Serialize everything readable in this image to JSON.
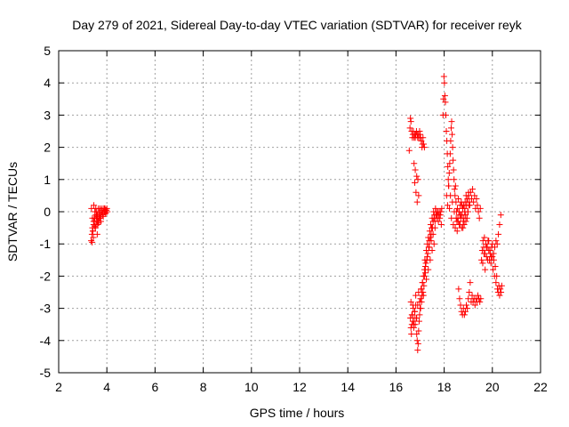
{
  "chart_data": {
    "type": "scatter",
    "title": "Day 279 of 2021, Sidereal Day-to-day VTEC variation (SDTVAR) for receiver reyk",
    "xlabel": "GPS time / hours",
    "ylabel": "SDTVAR / TECUs",
    "xlim": [
      2,
      22
    ],
    "ylim": [
      -5,
      5
    ],
    "xticks": [
      "2",
      "4",
      "6",
      "8",
      "10",
      "12",
      "14",
      "16",
      "18",
      "20",
      "22"
    ],
    "yticks": [
      "5",
      "4",
      "3",
      "2",
      "1",
      "0",
      "-1",
      "-2",
      "-3",
      "-4",
      "-5"
    ],
    "grid": true,
    "marker": "+",
    "series_color": "#ff0000",
    "series": [
      {
        "name": "reyk",
        "x": [
          3.35,
          3.38,
          3.4,
          3.42,
          3.45,
          3.48,
          3.5,
          3.52,
          3.55,
          3.58,
          3.6,
          3.62,
          3.65,
          3.68,
          3.7,
          3.72,
          3.75,
          3.78,
          3.8,
          3.82,
          3.85,
          3.88,
          3.9,
          3.92,
          3.95,
          3.98,
          4.0,
          4.02,
          3.4,
          3.45,
          3.5,
          3.55,
          3.6,
          3.65,
          3.7,
          3.42,
          3.48,
          3.52,
          3.58,
          3.62,
          3.68,
          3.72,
          3.78,
          3.82,
          3.88,
          3.92,
          3.98,
          3.44,
          3.5,
          3.56,
          3.62,
          3.66,
          3.46,
          3.54,
          3.6,
          3.75,
          3.85,
          3.95,
          3.36,
          3.39,
          16.55,
          16.58,
          16.6,
          16.62,
          16.65,
          16.68,
          16.7,
          16.72,
          16.75,
          16.78,
          16.8,
          16.82,
          16.85,
          16.88,
          16.9,
          16.92,
          16.95,
          16.98,
          17.0,
          17.02,
          17.05,
          17.08,
          17.1,
          17.12,
          17.15,
          17.18,
          16.6,
          16.62,
          16.64,
          16.66,
          16.68,
          16.7,
          16.72,
          16.74,
          16.76,
          16.78,
          16.8,
          16.82,
          16.84,
          16.86,
          16.88,
          16.9,
          16.92,
          16.94,
          16.96,
          16.98,
          17.0,
          17.02,
          17.04,
          17.06,
          17.08,
          17.1,
          17.12,
          17.14,
          17.16,
          17.18,
          17.2,
          17.22,
          17.24,
          17.26,
          17.28,
          17.3,
          17.32,
          17.34,
          17.36,
          17.38,
          17.4,
          17.42,
          17.44,
          17.46,
          17.48,
          17.5,
          17.52,
          17.54,
          17.56,
          17.58,
          17.6,
          17.62,
          17.64,
          17.66,
          17.68,
          17.7,
          17.72,
          17.74,
          17.76,
          17.78,
          17.8,
          17.82,
          17.84,
          17.86,
          17.88,
          17.9,
          16.62,
          16.66,
          16.7,
          16.74,
          16.78,
          16.82,
          16.86,
          16.9,
          16.94,
          16.98,
          17.02,
          17.06,
          17.1,
          17.14,
          17.18,
          17.22,
          17.26,
          17.3,
          17.34,
          17.38,
          17.42,
          17.46,
          17.5,
          17.54,
          17.58,
          17.62,
          17.95,
          17.97,
          17.99,
          18.01,
          18.03,
          18.05,
          18.07,
          18.09,
          18.11,
          18.13,
          18.15,
          18.17,
          18.19,
          18.21,
          18.23,
          18.25,
          18.27,
          18.29,
          18.31,
          18.33,
          18.35,
          18.37,
          18.39,
          18.41,
          18.43,
          18.45,
          18.47,
          18.49,
          18.51,
          18.53,
          18.55,
          18.57,
          18.59,
          18.61,
          18.63,
          18.65,
          18.67,
          18.69,
          18.71,
          18.73,
          18.75,
          18.77,
          18.79,
          18.81,
          18.83,
          18.85,
          18.87,
          18.89,
          18.91,
          18.93,
          18.95,
          18.97,
          18.99,
          19.01,
          19.03,
          19.05,
          18.1,
          18.14,
          18.18,
          18.22,
          18.26,
          18.3,
          18.34,
          18.38,
          18.42,
          18.46,
          18.5,
          18.54,
          18.58,
          18.62,
          18.66,
          18.7,
          18.74,
          18.78,
          18.82,
          18.86,
          18.9,
          18.94,
          18.98,
          19.02,
          19.06,
          19.1,
          19.14,
          19.18,
          19.22,
          19.26,
          19.3,
          19.34,
          19.38,
          19.42,
          19.46,
          19.5,
          18.6,
          18.64,
          18.68,
          18.72,
          18.76,
          18.8,
          18.84,
          18.88,
          18.92,
          18.96,
          19.0,
          19.04,
          19.08,
          19.12,
          19.16,
          19.2,
          19.24,
          19.28,
          19.32,
          19.36,
          19.4,
          19.44,
          19.48,
          19.52,
          19.55,
          19.58,
          19.61,
          19.64,
          19.67,
          19.7,
          19.73,
          19.76,
          19.79,
          19.82,
          19.85,
          19.88,
          19.91,
          19.94,
          19.97,
          20.0,
          20.03,
          20.06,
          20.09,
          20.12,
          20.15,
          20.18,
          20.21,
          20.24,
          20.27,
          20.3,
          20.33,
          20.36,
          20.39,
          19.6,
          19.65,
          19.7,
          19.75,
          19.8,
          19.85,
          19.9,
          19.95,
          20.0,
          20.05,
          20.1,
          20.15,
          20.2,
          20.25,
          20.3,
          20.35,
          16.75,
          16.78,
          16.8,
          16.83,
          16.86,
          16.88,
          16.91,
          16.94
        ],
        "y": [
          -0.9,
          -0.7,
          -0.5,
          -0.6,
          -0.4,
          -0.3,
          -0.2,
          -0.5,
          -0.1,
          0.0,
          -0.3,
          -0.1,
          0.1,
          -0.2,
          0.0,
          0.1,
          -0.1,
          0.0,
          0.1,
          -0.1,
          0.0,
          0.1,
          0.0,
          0.1,
          0.05,
          0.0,
          0.1,
          0.0,
          -0.2,
          -0.3,
          0.0,
          -0.4,
          -0.1,
          -0.3,
          -0.05,
          -0.6,
          -0.2,
          -0.5,
          -0.15,
          -0.4,
          -0.1,
          -0.2,
          0.05,
          -0.05,
          0.1,
          0.0,
          0.05,
          -0.8,
          -0.45,
          -0.3,
          -0.2,
          -0.35,
          0.2,
          0.1,
          -0.7,
          -0.3,
          -0.15,
          -0.05,
          0.1,
          -0.95,
          1.9,
          2.6,
          2.9,
          2.8,
          2.5,
          2.3,
          2.4,
          2.5,
          2.3,
          2.4,
          2.3,
          2.4,
          2.5,
          2.4,
          2.3,
          2.4,
          2.3,
          2.5,
          2.4,
          2.3,
          2.2,
          2.0,
          2.1,
          2.3,
          2.1,
          2.0,
          -3.3,
          -3.6,
          -3.8,
          -3.5,
          -3.2,
          -3.4,
          -3.0,
          -3.6,
          -3.3,
          -3.1,
          -3.5,
          -2.9,
          -3.3,
          -3.8,
          -4.0,
          -4.3,
          -4.1,
          -3.7,
          -3.4,
          -3.2,
          -3.0,
          -2.7,
          -2.4,
          -2.8,
          -2.6,
          -2.2,
          -2.5,
          -2.0,
          -2.3,
          -1.8,
          -1.5,
          -1.9,
          -1.6,
          -1.2,
          -1.5,
          -1.0,
          -1.3,
          -0.8,
          -1.1,
          -0.9,
          -0.6,
          -0.8,
          -0.4,
          -0.7,
          -0.5,
          -0.2,
          -0.5,
          -0.3,
          0.0,
          -0.2,
          -0.1,
          -0.3,
          0.1,
          -0.1,
          0.0,
          -0.2,
          -0.1,
          0.0,
          -0.3,
          -0.1,
          0.0,
          -0.2,
          -0.1,
          0.0,
          -0.4,
          0.1,
          -2.8,
          -3.2,
          -2.9,
          -3.5,
          -3.1,
          -2.6,
          -3.3,
          -2.9,
          -2.5,
          -2.8,
          -3.0,
          -2.4,
          -2.2,
          -2.6,
          -2.0,
          -1.7,
          -2.1,
          -1.4,
          -1.8,
          -1.1,
          -1.5,
          -0.9,
          -1.2,
          -0.7,
          -1.0,
          -0.5,
          3.0,
          3.5,
          4.2,
          4.0,
          3.6,
          3.4,
          3.0,
          2.5,
          2.2,
          1.8,
          1.4,
          1.0,
          0.8,
          1.2,
          1.5,
          1.8,
          2.2,
          2.6,
          2.8,
          2.4,
          2.0,
          1.6,
          1.3,
          1.0,
          0.7,
          0.5,
          0.8,
          0.3,
          0.0,
          -0.3,
          0.1,
          -0.2,
          0.4,
          0.0,
          -0.4,
          -0.1,
          0.2,
          -0.2,
          0.3,
          -0.5,
          -0.1,
          0.1,
          -0.3,
          0.2,
          -0.4,
          0.0,
          0.3,
          -0.1,
          0.5,
          0.2,
          -0.2,
          0.4,
          0.0,
          0.6,
          0.2,
          0.3,
          0.5,
          0.2,
          0.8,
          0.1,
          0.5,
          -0.2,
          0.3,
          -0.4,
          0.0,
          -0.5,
          -0.2,
          -0.6,
          -0.3,
          0.0,
          -0.4,
          -0.1,
          0.2,
          -0.5,
          -0.2,
          0.1,
          -0.3,
          0.3,
          0.0,
          0.5,
          0.2,
          0.6,
          0.4,
          0.7,
          0.3,
          0.5,
          0.1,
          0.4,
          0.2,
          0.0,
          -0.2,
          0.1,
          -2.4,
          -2.7,
          -2.9,
          -3.1,
          -3.2,
          -3.0,
          -3.2,
          -3.1,
          -2.9,
          -3.0,
          -2.7,
          -2.5,
          -2.2,
          -2.8,
          -2.6,
          -2.8,
          -2.7,
          -2.9,
          -2.7,
          -2.8,
          -2.6,
          -2.7,
          -2.8,
          -2.7,
          -1.5,
          -1.2,
          -0.9,
          -1.1,
          -0.8,
          -1.3,
          -1.0,
          -1.4,
          -1.1,
          -0.9,
          -1.2,
          -1.5,
          -1.3,
          -1.6,
          -1.1,
          -1.4,
          -1.8,
          -1.5,
          -2.0,
          -1.7,
          -2.2,
          -2.0,
          -2.4,
          -2.5,
          -2.3,
          -2.6,
          -2.4,
          -2.5,
          -2.3,
          -1.6,
          -1.3,
          -1.8,
          -1.1,
          -1.5,
          -0.9,
          -1.2,
          -1.4,
          -1.0,
          -1.3,
          -1.1,
          -0.9,
          -1.0,
          -0.7,
          -0.4,
          -0.1,
          1.5,
          0.9,
          1.3,
          0.6,
          1.1,
          0.3,
          1.0,
          0.5
        ]
      }
    ]
  }
}
